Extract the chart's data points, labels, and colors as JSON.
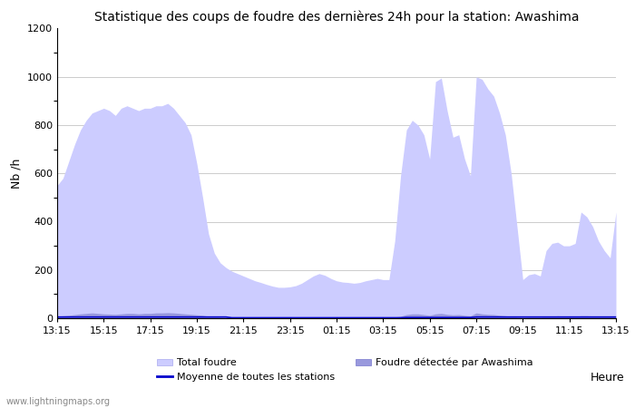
{
  "title": "Statistique des coups de foudre des dernières 24h pour la station: Awashima",
  "ylabel": "Nb /h",
  "xlabel": "Heure",
  "ylim": [
    0,
    1200
  ],
  "yticks": [
    0,
    200,
    400,
    600,
    800,
    1000,
    1200
  ],
  "x_labels": [
    "13:15",
    "15:15",
    "17:15",
    "19:15",
    "21:15",
    "23:15",
    "01:15",
    "03:15",
    "05:15",
    "07:15",
    "09:15",
    "11:15",
    "13:15"
  ],
  "color_total": "#ccccff",
  "color_awashima": "#9999dd",
  "color_line": "#0000cc",
  "watermark": "www.lightningmaps.org",
  "total_foudre": [
    550,
    580,
    650,
    720,
    780,
    820,
    850,
    860,
    870,
    860,
    840,
    870,
    880,
    870,
    860,
    870,
    870,
    880,
    880,
    890,
    870,
    840,
    810,
    760,
    640,
    500,
    350,
    270,
    230,
    210,
    195,
    185,
    175,
    165,
    155,
    148,
    140,
    133,
    128,
    128,
    130,
    135,
    145,
    160,
    175,
    185,
    178,
    165,
    155,
    150,
    148,
    145,
    148,
    155,
    160,
    165,
    160,
    160,
    320,
    590,
    780,
    820,
    800,
    760,
    660,
    980,
    995,
    860,
    750,
    760,
    660,
    590,
    1000,
    990,
    950,
    920,
    850,
    760,
    600,
    380,
    160,
    180,
    185,
    175,
    280,
    310,
    315,
    300,
    300,
    310,
    440,
    420,
    380,
    320,
    280,
    250,
    440
  ],
  "awashima": [
    8,
    10,
    12,
    15,
    18,
    20,
    22,
    20,
    18,
    17,
    16,
    18,
    20,
    20,
    18,
    20,
    20,
    22,
    22,
    23,
    22,
    20,
    18,
    16,
    14,
    12,
    8,
    6,
    5,
    4,
    3,
    3,
    3,
    2,
    2,
    2,
    2,
    2,
    2,
    2,
    2,
    2,
    2,
    2,
    2,
    2,
    2,
    2,
    2,
    2,
    2,
    2,
    2,
    2,
    2,
    2,
    2,
    2,
    5,
    8,
    15,
    18,
    18,
    15,
    12,
    18,
    20,
    16,
    14,
    15,
    12,
    10,
    22,
    18,
    16,
    15,
    12,
    10,
    8,
    5,
    4,
    5,
    5,
    5,
    6,
    8,
    10,
    8,
    8,
    8,
    10,
    10,
    9,
    8,
    7,
    6,
    10
  ],
  "moyenne": [
    5,
    5,
    5,
    5,
    5,
    5,
    5,
    5,
    5,
    5,
    5,
    5,
    5,
    5,
    5,
    5,
    5,
    5,
    5,
    5,
    5,
    5,
    5,
    5,
    5,
    5,
    5,
    5,
    5,
    5,
    2,
    2,
    2,
    2,
    2,
    2,
    2,
    2,
    2,
    2,
    2,
    2,
    2,
    2,
    2,
    2,
    2,
    2,
    2,
    2,
    2,
    2,
    2,
    2,
    2,
    2,
    2,
    2,
    2,
    2,
    3,
    3,
    3,
    3,
    3,
    3,
    3,
    3,
    3,
    3,
    3,
    3,
    5,
    5,
    5,
    5,
    5,
    5,
    5,
    5,
    5,
    5,
    5,
    5,
    5,
    5,
    5,
    5,
    5,
    5,
    5,
    5,
    5,
    5,
    5,
    5,
    5
  ]
}
